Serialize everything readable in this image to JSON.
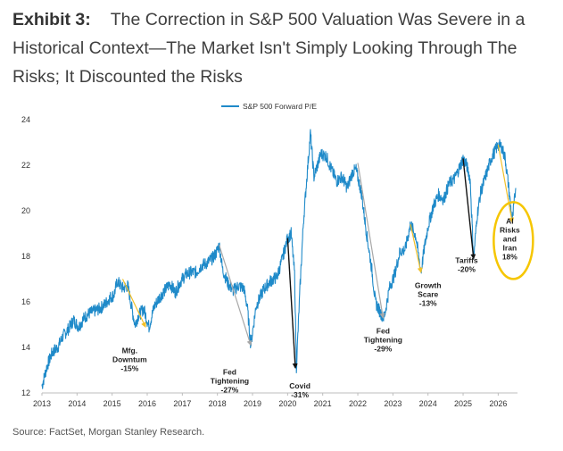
{
  "title": {
    "lead": "Exhibit 3:",
    "text": "The Correction in S&P 500 Valuation Was Severe in a Historical Context—The Market Isn't Simply Looking Through The Risks; It Discounted the Risks"
  },
  "source": "Source: FactSet, Morgan Stanley Research.",
  "colors": {
    "series": "#1f8ac9",
    "yellow_arrow": "#f2c029",
    "gray_arrow": "#a8a8a8",
    "black_arrow": "#111111",
    "ellipse": "#f6c600"
  },
  "chart_data": {
    "type": "line",
    "ylim": [
      12,
      24
    ],
    "yticks": [
      12,
      14,
      16,
      18,
      20,
      22,
      24
    ],
    "xlim": [
      2013,
      2026.55
    ],
    "xticks": [
      "2013",
      "2014",
      "2015",
      "2016",
      "2017",
      "2018",
      "2019",
      "2020",
      "2021",
      "2022",
      "2023",
      "2024",
      "2025",
      "2026"
    ],
    "legend": "top-center",
    "series": [
      {
        "name": "S&P 500 Forward P/E",
        "x": [
          2013.0,
          2013.15,
          2013.3,
          2013.45,
          2013.6,
          2013.75,
          2013.9,
          2014.05,
          2014.2,
          2014.35,
          2014.5,
          2014.65,
          2014.8,
          2014.95,
          2015.05,
          2015.15,
          2015.3,
          2015.45,
          2015.55,
          2015.65,
          2015.75,
          2015.9,
          2016.05,
          2016.2,
          2016.35,
          2016.5,
          2016.65,
          2016.8,
          2016.95,
          2017.1,
          2017.25,
          2017.4,
          2017.55,
          2017.7,
          2017.85,
          2017.95,
          2018.05,
          2018.15,
          2018.3,
          2018.45,
          2018.6,
          2018.75,
          2018.85,
          2018.95,
          2019.1,
          2019.3,
          2019.5,
          2019.7,
          2019.85,
          2020.0,
          2020.1,
          2020.2,
          2020.25,
          2020.35,
          2020.45,
          2020.55,
          2020.65,
          2020.75,
          2020.85,
          2020.95,
          2021.1,
          2021.25,
          2021.4,
          2021.55,
          2021.7,
          2021.85,
          2021.95,
          2022.1,
          2022.25,
          2022.4,
          2022.5,
          2022.65,
          2022.75,
          2022.9,
          2023.05,
          2023.2,
          2023.35,
          2023.5,
          2023.65,
          2023.8,
          2023.9,
          2024.0,
          2024.15,
          2024.3,
          2024.45,
          2024.6,
          2024.75,
          2024.9,
          2025.0,
          2025.1,
          2025.2,
          2025.3,
          2025.4,
          2025.5,
          2025.6,
          2025.7,
          2025.8,
          2025.9,
          2026.0,
          2026.1,
          2026.2,
          2026.3,
          2026.4,
          2026.5
        ],
        "y": [
          12.3,
          13.2,
          13.8,
          14.0,
          14.5,
          14.8,
          15.2,
          14.9,
          15.3,
          15.5,
          15.6,
          15.7,
          15.9,
          16.2,
          16.3,
          16.9,
          16.6,
          16.7,
          15.8,
          15.0,
          15.4,
          15.7,
          14.9,
          15.8,
          16.2,
          16.5,
          16.8,
          16.4,
          16.9,
          17.2,
          17.3,
          17.3,
          17.6,
          17.7,
          17.9,
          18.1,
          18.5,
          17.4,
          16.8,
          16.5,
          16.7,
          16.6,
          15.8,
          14.1,
          15.8,
          16.5,
          16.9,
          17.1,
          17.9,
          18.8,
          19.0,
          17.2,
          13.1,
          16.5,
          19.5,
          21.5,
          23.4,
          21.5,
          22.0,
          22.5,
          22.4,
          21.8,
          21.3,
          21.5,
          21.0,
          21.7,
          21.8,
          20.8,
          19.0,
          17.4,
          16.0,
          15.5,
          15.3,
          16.6,
          17.2,
          18.2,
          18.3,
          19.4,
          18.9,
          17.3,
          18.4,
          19.3,
          20.2,
          20.7,
          20.5,
          21.2,
          21.4,
          21.9,
          22.3,
          22.0,
          21.4,
          17.9,
          19.8,
          20.8,
          21.3,
          21.8,
          22.3,
          22.6,
          22.9,
          22.8,
          22.3,
          21.0,
          19.5,
          21.0
        ]
      }
    ],
    "annotations": [
      {
        "text": "Mfg.\nDowntum\n-15%",
        "arrow": "yellow",
        "from": [
          2015.3,
          17.0
        ],
        "to": [
          2015.95,
          14.9
        ],
        "label_at": [
          2015.5,
          13.75
        ]
      },
      {
        "text": "Fed\nTightening\n-27%",
        "arrow": "gray",
        "from": [
          2018.05,
          18.5
        ],
        "to": [
          2018.95,
          14.1
        ],
        "label_at": [
          2018.35,
          12.8
        ]
      },
      {
        "text": "Covid\n-31%",
        "arrow": "black",
        "from": [
          2020.0,
          18.8
        ],
        "to": [
          2020.22,
          13.1
        ],
        "label_at": [
          2020.35,
          12.2
        ]
      },
      {
        "text": "Fed\nTightening\n-29%",
        "arrow": "gray",
        "from": [
          2022.0,
          22.1
        ],
        "to": [
          2022.72,
          15.3
        ],
        "label_at": [
          2022.72,
          14.6
        ]
      },
      {
        "text": "Growth\nScare\n-13%",
        "arrow": "yellow",
        "from": [
          2023.5,
          19.4
        ],
        "to": [
          2023.8,
          17.3
        ],
        "label_at": [
          2024.0,
          16.6
        ]
      },
      {
        "text": "Tariffs\n-20%",
        "arrow": "black",
        "from": [
          2025.0,
          22.3
        ],
        "to": [
          2025.3,
          17.9
        ],
        "label_at": [
          2025.1,
          17.7
        ]
      },
      {
        "text": "AI\nRisks\nand\nIran\n18%",
        "arrow": "yellow",
        "from": [
          2026.0,
          22.9
        ],
        "to": [
          2026.4,
          19.5
        ],
        "label_at": [
          2026.33,
          18.3
        ],
        "ellipse": true
      }
    ]
  }
}
